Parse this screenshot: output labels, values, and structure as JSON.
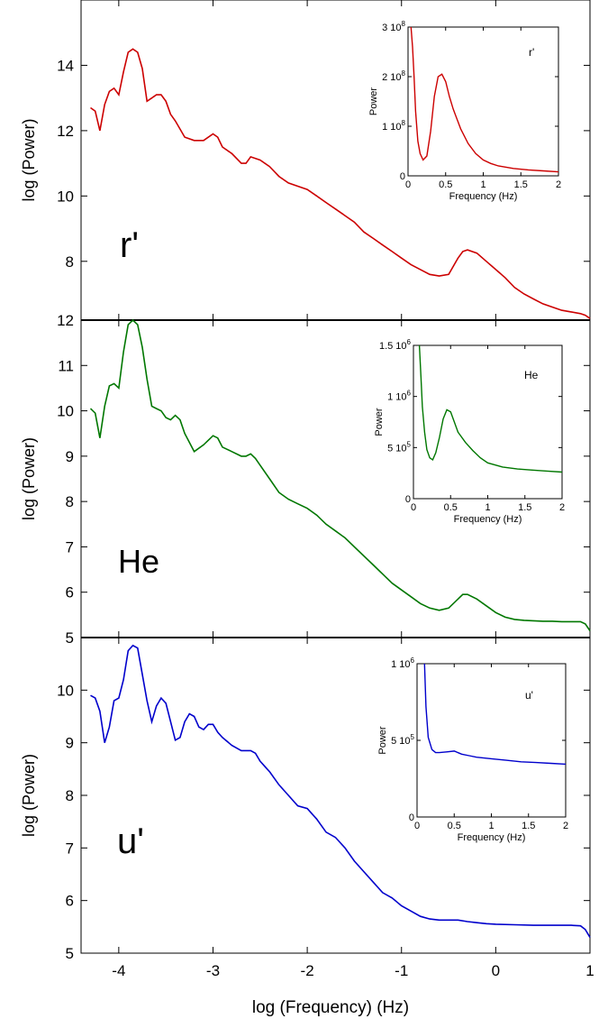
{
  "figure": {
    "xlabel": "log (Frequency) (Hz)",
    "ylabel": "log (Power)",
    "x_ticks": [
      -4,
      -3,
      -2,
      -1,
      0,
      1
    ],
    "xlim": [
      -4.4,
      1.0
    ]
  },
  "chart_data": [
    {
      "type": "line",
      "panel": "main",
      "title": "r'",
      "color": "#cc0000",
      "xlim": [
        -4.4,
        1.0
      ],
      "ylim": [
        6.2,
        16.0
      ],
      "y_ticks": [
        8,
        10,
        12,
        14
      ],
      "series": [
        {
          "x": [
            -4.3,
            -4.25,
            -4.2,
            -4.15,
            -4.1,
            -4.05,
            -4.0,
            -3.95,
            -3.9,
            -3.85,
            -3.8,
            -3.75,
            -3.7,
            -3.65,
            -3.6,
            -3.55,
            -3.5,
            -3.45,
            -3.4,
            -3.3,
            -3.2,
            -3.1,
            -3.0,
            -2.95,
            -2.9,
            -2.8,
            -2.7,
            -2.65,
            -2.6,
            -2.5,
            -2.4,
            -2.3,
            -2.2,
            -2.1,
            -2.0,
            -1.9,
            -1.8,
            -1.7,
            -1.6,
            -1.5,
            -1.4,
            -1.3,
            -1.2,
            -1.1,
            -1.0,
            -0.9,
            -0.8,
            -0.7,
            -0.6,
            -0.5,
            -0.4,
            -0.35,
            -0.3,
            -0.2,
            -0.1,
            0.0,
            0.1,
            0.2,
            0.3,
            0.4,
            0.5,
            0.6,
            0.7,
            0.8,
            0.9,
            0.95,
            1.0
          ],
          "y": [
            12.7,
            12.6,
            12.0,
            12.8,
            13.2,
            13.3,
            13.1,
            13.8,
            14.4,
            14.5,
            14.4,
            13.9,
            12.9,
            13.0,
            13.1,
            13.1,
            12.9,
            12.5,
            12.3,
            11.8,
            11.7,
            11.7,
            11.9,
            11.8,
            11.5,
            11.3,
            11.0,
            11.0,
            11.2,
            11.1,
            10.9,
            10.6,
            10.4,
            10.3,
            10.2,
            10.0,
            9.8,
            9.6,
            9.4,
            9.2,
            8.9,
            8.7,
            8.5,
            8.3,
            8.1,
            7.9,
            7.75,
            7.6,
            7.55,
            7.6,
            8.1,
            8.3,
            8.35,
            8.25,
            8.0,
            7.75,
            7.5,
            7.2,
            7.0,
            6.85,
            6.7,
            6.6,
            6.5,
            6.45,
            6.4,
            6.35,
            6.25
          ]
        }
      ],
      "inset": {
        "title": "r'",
        "xlabel": "Frequency (Hz)",
        "ylabel": "Power",
        "x_ticks": [
          "0",
          "0.5",
          "1",
          "1.5",
          "2"
        ],
        "xlim": [
          0,
          2
        ],
        "ylim": [
          0,
          3
        ],
        "y_ticks": [
          {
            "value": 0,
            "label": "0",
            "exp": ""
          },
          {
            "value": 1,
            "label": "1 10",
            "exp": "8"
          },
          {
            "value": 2,
            "label": "2 10",
            "exp": "8"
          },
          {
            "value": 3,
            "label": "3 10",
            "exp": "8"
          }
        ],
        "x": [
          0.04,
          0.06,
          0.08,
          0.1,
          0.13,
          0.16,
          0.2,
          0.25,
          0.3,
          0.35,
          0.4,
          0.45,
          0.5,
          0.55,
          0.6,
          0.7,
          0.8,
          0.9,
          1.0,
          1.1,
          1.2,
          1.4,
          1.6,
          1.8,
          2.0
        ],
        "y": [
          3.0,
          2.6,
          2.0,
          1.3,
          0.7,
          0.45,
          0.32,
          0.4,
          0.9,
          1.6,
          2.0,
          2.05,
          1.9,
          1.6,
          1.35,
          0.95,
          0.65,
          0.45,
          0.32,
          0.25,
          0.2,
          0.15,
          0.12,
          0.1,
          0.08
        ]
      }
    },
    {
      "type": "line",
      "panel": "main",
      "title": "He",
      "color": "#007700",
      "xlim": [
        -4.4,
        1.0
      ],
      "ylim": [
        5.0,
        12.0
      ],
      "y_ticks": [
        5,
        6,
        7,
        8,
        9,
        10,
        11,
        12
      ],
      "series": [
        {
          "x": [
            -4.3,
            -4.25,
            -4.2,
            -4.15,
            -4.1,
            -4.05,
            -4.0,
            -3.95,
            -3.9,
            -3.85,
            -3.8,
            -3.75,
            -3.7,
            -3.65,
            -3.6,
            -3.55,
            -3.5,
            -3.45,
            -3.4,
            -3.35,
            -3.3,
            -3.2,
            -3.1,
            -3.0,
            -2.95,
            -2.9,
            -2.85,
            -2.8,
            -2.7,
            -2.65,
            -2.6,
            -2.55,
            -2.5,
            -2.4,
            -2.3,
            -2.2,
            -2.1,
            -2.0,
            -1.9,
            -1.8,
            -1.7,
            -1.6,
            -1.5,
            -1.4,
            -1.3,
            -1.2,
            -1.1,
            -1.0,
            -0.9,
            -0.8,
            -0.7,
            -0.6,
            -0.5,
            -0.4,
            -0.35,
            -0.3,
            -0.2,
            -0.1,
            0.0,
            0.1,
            0.2,
            0.3,
            0.4,
            0.5,
            0.6,
            0.7,
            0.8,
            0.9,
            0.95,
            1.0
          ],
          "y": [
            10.05,
            9.95,
            9.4,
            10.1,
            10.55,
            10.6,
            10.5,
            11.3,
            11.9,
            12.0,
            11.9,
            11.4,
            10.7,
            10.1,
            10.05,
            10.0,
            9.85,
            9.8,
            9.9,
            9.8,
            9.5,
            9.1,
            9.25,
            9.45,
            9.4,
            9.2,
            9.15,
            9.1,
            9.0,
            9.0,
            9.05,
            8.95,
            8.8,
            8.5,
            8.2,
            8.05,
            7.95,
            7.85,
            7.7,
            7.5,
            7.35,
            7.2,
            7.0,
            6.8,
            6.6,
            6.4,
            6.2,
            6.05,
            5.9,
            5.75,
            5.65,
            5.6,
            5.65,
            5.85,
            5.95,
            5.95,
            5.85,
            5.7,
            5.55,
            5.45,
            5.4,
            5.38,
            5.37,
            5.36,
            5.36,
            5.35,
            5.35,
            5.35,
            5.3,
            5.15
          ]
        }
      ],
      "inset": {
        "title": "He",
        "xlabel": "Frequency (Hz)",
        "ylabel": "Power",
        "x_ticks": [
          "0",
          "0.5",
          "1",
          "1.5",
          "2"
        ],
        "xlim": [
          0,
          2
        ],
        "ylim": [
          0,
          1.5
        ],
        "y_ticks": [
          {
            "value": 0,
            "label": "0",
            "exp": ""
          },
          {
            "value": 0.5,
            "label": "5 10",
            "exp": "5"
          },
          {
            "value": 1.0,
            "label": "1 10",
            "exp": "6"
          },
          {
            "value": 1.5,
            "label": "1.5 10",
            "exp": "6"
          }
        ],
        "x": [
          0.08,
          0.1,
          0.12,
          0.15,
          0.18,
          0.22,
          0.26,
          0.3,
          0.35,
          0.4,
          0.45,
          0.5,
          0.55,
          0.6,
          0.7,
          0.8,
          0.9,
          1.0,
          1.2,
          1.4,
          1.6,
          1.8,
          2.0
        ],
        "y": [
          1.5,
          1.2,
          0.9,
          0.65,
          0.48,
          0.4,
          0.38,
          0.45,
          0.6,
          0.78,
          0.87,
          0.85,
          0.75,
          0.65,
          0.55,
          0.47,
          0.4,
          0.35,
          0.31,
          0.29,
          0.28,
          0.27,
          0.26
        ]
      }
    },
    {
      "type": "line",
      "panel": "main",
      "title": "u'",
      "color": "#0000cc",
      "xlim": [
        -4.4,
        1.0
      ],
      "ylim": [
        5.0,
        11.0
      ],
      "y_ticks": [
        5,
        6,
        7,
        8,
        9,
        10
      ],
      "series": [
        {
          "x": [
            -4.3,
            -4.25,
            -4.2,
            -4.15,
            -4.1,
            -4.05,
            -4.0,
            -3.95,
            -3.9,
            -3.85,
            -3.8,
            -3.75,
            -3.7,
            -3.65,
            -3.6,
            -3.55,
            -3.5,
            -3.45,
            -3.4,
            -3.35,
            -3.3,
            -3.25,
            -3.2,
            -3.15,
            -3.1,
            -3.05,
            -3.0,
            -2.95,
            -2.9,
            -2.8,
            -2.7,
            -2.6,
            -2.55,
            -2.5,
            -2.4,
            -2.3,
            -2.2,
            -2.1,
            -2.0,
            -1.9,
            -1.8,
            -1.7,
            -1.6,
            -1.5,
            -1.4,
            -1.3,
            -1.2,
            -1.1,
            -1.0,
            -0.9,
            -0.8,
            -0.7,
            -0.6,
            -0.5,
            -0.4,
            -0.3,
            -0.2,
            -0.1,
            0.0,
            0.2,
            0.4,
            0.6,
            0.8,
            0.9,
            0.95,
            1.0
          ],
          "y": [
            9.9,
            9.85,
            9.6,
            9.0,
            9.3,
            9.8,
            9.85,
            10.2,
            10.75,
            10.85,
            10.8,
            10.3,
            9.8,
            9.4,
            9.7,
            9.85,
            9.75,
            9.4,
            9.05,
            9.1,
            9.4,
            9.55,
            9.5,
            9.3,
            9.25,
            9.35,
            9.35,
            9.2,
            9.1,
            8.95,
            8.85,
            8.85,
            8.8,
            8.65,
            8.45,
            8.2,
            8.0,
            7.8,
            7.75,
            7.55,
            7.3,
            7.2,
            7.0,
            6.75,
            6.55,
            6.35,
            6.15,
            6.05,
            5.9,
            5.8,
            5.7,
            5.65,
            5.63,
            5.63,
            5.63,
            5.6,
            5.58,
            5.56,
            5.55,
            5.54,
            5.53,
            5.53,
            5.53,
            5.52,
            5.45,
            5.3
          ]
        }
      ],
      "inset": {
        "title": "u'",
        "xlabel": "Frequency (Hz)",
        "ylabel": "Power",
        "x_ticks": [
          "0",
          "0.5",
          "1",
          "1.5",
          "2"
        ],
        "xlim": [
          0,
          2
        ],
        "ylim": [
          0,
          1.0
        ],
        "y_ticks": [
          {
            "value": 0,
            "label": "0",
            "exp": ""
          },
          {
            "value": 0.5,
            "label": "5 10",
            "exp": "5"
          },
          {
            "value": 1.0,
            "label": "1 10",
            "exp": "6"
          }
        ],
        "x": [
          0.1,
          0.12,
          0.15,
          0.2,
          0.25,
          0.3,
          0.4,
          0.5,
          0.6,
          0.7,
          0.8,
          1.0,
          1.2,
          1.4,
          1.6,
          1.8,
          2.0
        ],
        "y": [
          1.0,
          0.72,
          0.52,
          0.44,
          0.42,
          0.42,
          0.425,
          0.43,
          0.41,
          0.4,
          0.39,
          0.38,
          0.37,
          0.36,
          0.355,
          0.35,
          0.345
        ]
      }
    }
  ]
}
